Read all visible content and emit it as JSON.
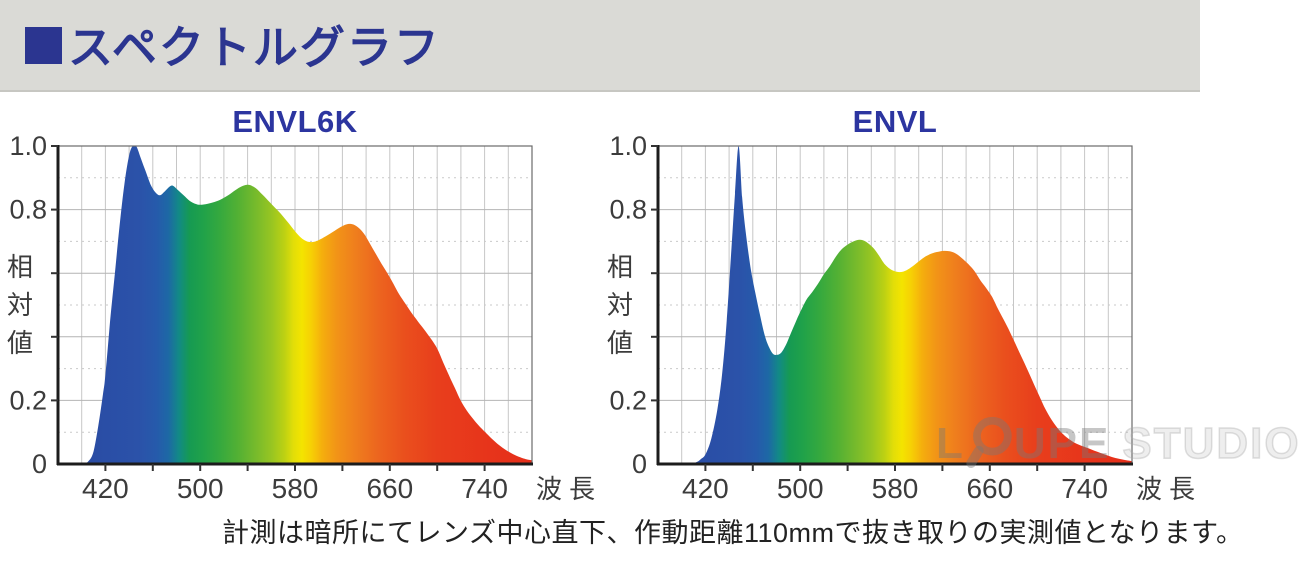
{
  "header": {
    "title": "スペクトルグラフ",
    "accent_color": "#2b3590",
    "background_color": "#dadad6"
  },
  "caption": "計測は暗所にてレンズ中心直下、作動距離110mmで抜き取りの実測値となります。",
  "watermark": {
    "loupe_l": "L",
    "loupe_rest": "UPE",
    "studio": "STUDIO",
    "icon": "loupe-icon"
  },
  "colors": {
    "chart_title": "#2c35a0",
    "axis": "#1c1c1c",
    "tick_label": "#3c3c3c",
    "grid_major": "#b4b4b4",
    "grid_minor": "#cacaca",
    "plot_border": "#6a6a6a"
  },
  "spectral_gradient": [
    {
      "nm": 380,
      "color": "#2b479c"
    },
    {
      "nm": 420,
      "color": "#2a4ea6"
    },
    {
      "nm": 448,
      "color": "#2b52a9"
    },
    {
      "nm": 463,
      "color": "#265aab"
    },
    {
      "nm": 473,
      "color": "#1d68a5"
    },
    {
      "nm": 482,
      "color": "#128a86"
    },
    {
      "nm": 491,
      "color": "#169a52"
    },
    {
      "nm": 503,
      "color": "#21a249"
    },
    {
      "nm": 517,
      "color": "#36a93e"
    },
    {
      "nm": 533,
      "color": "#55b133"
    },
    {
      "nm": 548,
      "color": "#79bb2b"
    },
    {
      "nm": 560,
      "color": "#97c522"
    },
    {
      "nm": 571,
      "color": "#bcd113"
    },
    {
      "nm": 579,
      "color": "#e3de08"
    },
    {
      "nm": 586,
      "color": "#f4e400"
    },
    {
      "nm": 594,
      "color": "#f6cf05"
    },
    {
      "nm": 603,
      "color": "#f5ae0d"
    },
    {
      "nm": 615,
      "color": "#f29417"
    },
    {
      "nm": 631,
      "color": "#ef7e1d"
    },
    {
      "nm": 651,
      "color": "#ec641f"
    },
    {
      "nm": 673,
      "color": "#ea4f1d"
    },
    {
      "nm": 700,
      "color": "#e83e1c"
    },
    {
      "nm": 740,
      "color": "#e7351b"
    },
    {
      "nm": 780,
      "color": "#e52e1a"
    }
  ],
  "chart_data": [
    {
      "type": "area",
      "title": "ENVL6K",
      "xlabel": "波長",
      "ylabel": "相対値",
      "ylabel_chars": [
        "相",
        "対",
        "値"
      ],
      "xlim": [
        380,
        780
      ],
      "ylim": [
        0,
        1.0
      ],
      "x_ticks": [
        420,
        500,
        580,
        660,
        740
      ],
      "x_tick_step_minor": 40,
      "x_grid_step": 20,
      "y_grid_major_step": 0.2,
      "y_grid_minor_step": 0.1,
      "grid": true,
      "legend": "none",
      "y_tick_labels": [
        {
          "value": 1.0,
          "label": "1.0"
        },
        {
          "value": 0.8,
          "label": "0.8"
        },
        {
          "value": 0.2,
          "label": "0.2"
        },
        {
          "value": 0.0,
          "label": "0"
        }
      ],
      "points": [
        [
          380,
          0
        ],
        [
          400,
          0
        ],
        [
          406,
          0.01
        ],
        [
          410,
          0.04
        ],
        [
          414,
          0.12
        ],
        [
          418,
          0.22
        ],
        [
          420,
          0.28
        ],
        [
          424,
          0.45
        ],
        [
          428,
          0.6
        ],
        [
          432,
          0.75
        ],
        [
          436,
          0.88
        ],
        [
          440,
          0.97
        ],
        [
          443,
          1.0
        ],
        [
          446,
          1.0
        ],
        [
          450,
          0.96
        ],
        [
          454,
          0.92
        ],
        [
          458,
          0.88
        ],
        [
          462,
          0.855
        ],
        [
          466,
          0.845
        ],
        [
          470,
          0.857
        ],
        [
          474,
          0.872
        ],
        [
          477,
          0.875
        ],
        [
          481,
          0.862
        ],
        [
          486,
          0.845
        ],
        [
          491,
          0.828
        ],
        [
          496,
          0.818
        ],
        [
          500,
          0.815
        ],
        [
          506,
          0.818
        ],
        [
          512,
          0.824
        ],
        [
          518,
          0.833
        ],
        [
          524,
          0.846
        ],
        [
          530,
          0.862
        ],
        [
          535,
          0.873
        ],
        [
          540,
          0.878
        ],
        [
          544,
          0.874
        ],
        [
          548,
          0.864
        ],
        [
          552,
          0.849
        ],
        [
          557,
          0.83
        ],
        [
          562,
          0.81
        ],
        [
          568,
          0.787
        ],
        [
          574,
          0.76
        ],
        [
          580,
          0.732
        ],
        [
          585,
          0.712
        ],
        [
          590,
          0.7
        ],
        [
          595,
          0.698
        ],
        [
          600,
          0.704
        ],
        [
          606,
          0.716
        ],
        [
          612,
          0.73
        ],
        [
          618,
          0.744
        ],
        [
          623,
          0.753
        ],
        [
          627,
          0.755
        ],
        [
          631,
          0.75
        ],
        [
          635,
          0.738
        ],
        [
          639,
          0.72
        ],
        [
          643,
          0.694
        ],
        [
          648,
          0.662
        ],
        [
          653,
          0.63
        ],
        [
          658,
          0.6
        ],
        [
          663,
          0.567
        ],
        [
          668,
          0.533
        ],
        [
          673,
          0.505
        ],
        [
          678,
          0.477
        ],
        [
          684,
          0.447
        ],
        [
          690,
          0.418
        ],
        [
          695,
          0.392
        ],
        [
          700,
          0.363
        ],
        [
          705,
          0.32
        ],
        [
          710,
          0.278
        ],
        [
          715,
          0.238
        ],
        [
          720,
          0.198
        ],
        [
          725,
          0.168
        ],
        [
          730,
          0.143
        ],
        [
          735,
          0.121
        ],
        [
          740,
          0.102
        ],
        [
          746,
          0.08
        ],
        [
          752,
          0.06
        ],
        [
          758,
          0.044
        ],
        [
          764,
          0.031
        ],
        [
          770,
          0.021
        ],
        [
          775,
          0.015
        ],
        [
          780,
          0.012
        ]
      ]
    },
    {
      "type": "area",
      "title": "ENVL",
      "xlabel": "波長",
      "ylabel": "相対値",
      "ylabel_chars": [
        "相",
        "対",
        "値"
      ],
      "xlim": [
        380,
        780
      ],
      "ylim": [
        0,
        1.0
      ],
      "x_ticks": [
        420,
        500,
        580,
        660,
        740
      ],
      "x_tick_step_minor": 40,
      "x_grid_step": 20,
      "y_grid_major_step": 0.2,
      "y_grid_minor_step": 0.1,
      "grid": true,
      "legend": "none",
      "y_tick_labels": [
        {
          "value": 1.0,
          "label": "1.0"
        },
        {
          "value": 0.8,
          "label": "0.8"
        },
        {
          "value": 0.2,
          "label": "0.2"
        },
        {
          "value": 0.0,
          "label": "0"
        }
      ],
      "points": [
        [
          380,
          0
        ],
        [
          405,
          0
        ],
        [
          412,
          0.005
        ],
        [
          416,
          0.015
        ],
        [
          420,
          0.03
        ],
        [
          425,
          0.08
        ],
        [
          430,
          0.17
        ],
        [
          434,
          0.28
        ],
        [
          438,
          0.45
        ],
        [
          442,
          0.68
        ],
        [
          445,
          0.85
        ],
        [
          448,
          1.0
        ],
        [
          451,
          0.84
        ],
        [
          454,
          0.73
        ],
        [
          458,
          0.62
        ],
        [
          462,
          0.54
        ],
        [
          466,
          0.47
        ],
        [
          470,
          0.405
        ],
        [
          474,
          0.365
        ],
        [
          477,
          0.347
        ],
        [
          480,
          0.343
        ],
        [
          484,
          0.35
        ],
        [
          488,
          0.375
        ],
        [
          492,
          0.41
        ],
        [
          496,
          0.445
        ],
        [
          500,
          0.478
        ],
        [
          505,
          0.515
        ],
        [
          510,
          0.54
        ],
        [
          515,
          0.567
        ],
        [
          520,
          0.597
        ],
        [
          525,
          0.622
        ],
        [
          530,
          0.652
        ],
        [
          535,
          0.675
        ],
        [
          540,
          0.69
        ],
        [
          545,
          0.7
        ],
        [
          550,
          0.705
        ],
        [
          554,
          0.702
        ],
        [
          558,
          0.692
        ],
        [
          562,
          0.678
        ],
        [
          566,
          0.658
        ],
        [
          571,
          0.63
        ],
        [
          576,
          0.613
        ],
        [
          581,
          0.605
        ],
        [
          586,
          0.604
        ],
        [
          591,
          0.612
        ],
        [
          596,
          0.625
        ],
        [
          601,
          0.64
        ],
        [
          606,
          0.653
        ],
        [
          611,
          0.662
        ],
        [
          616,
          0.667
        ],
        [
          621,
          0.67
        ],
        [
          626,
          0.669
        ],
        [
          630,
          0.664
        ],
        [
          634,
          0.655
        ],
        [
          638,
          0.642
        ],
        [
          642,
          0.628
        ],
        [
          647,
          0.607
        ],
        [
          652,
          0.578
        ],
        [
          657,
          0.553
        ],
        [
          662,
          0.525
        ],
        [
          667,
          0.487
        ],
        [
          672,
          0.452
        ],
        [
          677,
          0.415
        ],
        [
          682,
          0.375
        ],
        [
          687,
          0.335
        ],
        [
          692,
          0.295
        ],
        [
          697,
          0.253
        ],
        [
          702,
          0.212
        ],
        [
          707,
          0.172
        ],
        [
          712,
          0.14
        ],
        [
          717,
          0.114
        ],
        [
          722,
          0.093
        ],
        [
          727,
          0.078
        ],
        [
          732,
          0.066
        ],
        [
          737,
          0.058
        ],
        [
          742,
          0.051
        ],
        [
          748,
          0.042
        ],
        [
          754,
          0.034
        ],
        [
          760,
          0.026
        ],
        [
          766,
          0.019
        ],
        [
          772,
          0.014
        ],
        [
          780,
          0.009
        ]
      ]
    }
  ]
}
